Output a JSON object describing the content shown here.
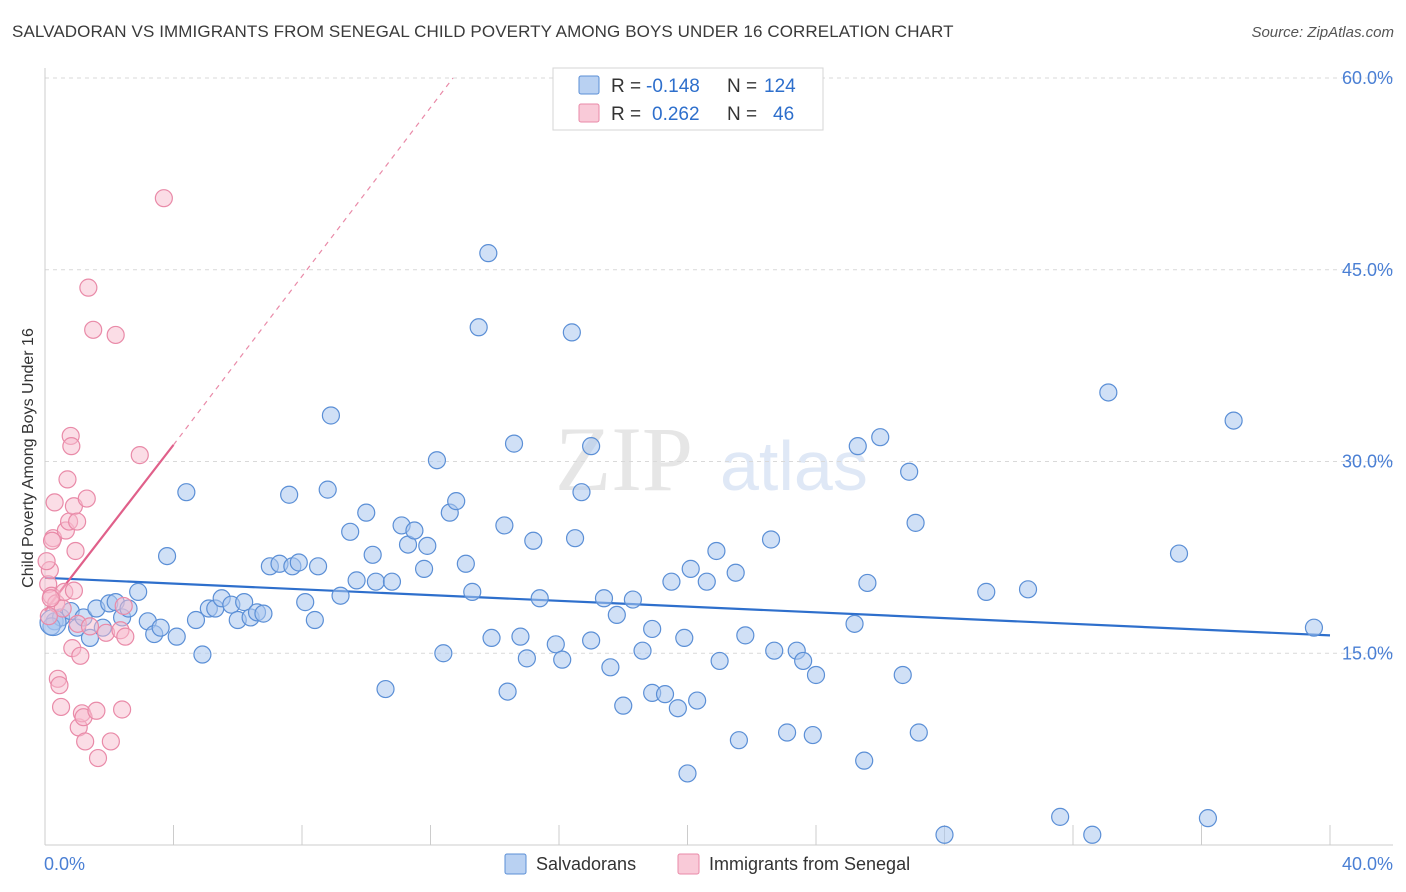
{
  "title": "SALVADORAN VS IMMIGRANTS FROM SENEGAL CHILD POVERTY AMONG BOYS UNDER 16 CORRELATION CHART",
  "source": "Source: ZipAtlas.com",
  "watermark": {
    "zip": "ZIP",
    "atlas": "atlas"
  },
  "colors": {
    "blue": "#5b8fd6",
    "blue_fill": "#a9c6ef",
    "blue_line": "#2e6fcc",
    "pink": "#e98aa8",
    "pink_fill": "#f7bccd",
    "pink_line": "#e0608a",
    "axis_label": "#4a7fd4",
    "grid": "#d9d9d9"
  },
  "legend_stats": [
    {
      "r_label": "R =",
      "r_value": "-0.148",
      "n_label": "N =",
      "n_value": "124",
      "color": "blue"
    },
    {
      "r_label": "R =",
      "r_value": "0.262",
      "n_label": "N =",
      "n_value": "46",
      "color": "pink"
    }
  ],
  "chart_data": {
    "type": "scatter",
    "xlabel": "",
    "ylabel": "Child Poverty Among Boys Under 16",
    "xlim": [
      0,
      40
    ],
    "ylim": [
      0,
      60
    ],
    "x_tick_labels": [
      "0.0%",
      "40.0%"
    ],
    "y_ticks": [
      15,
      30,
      45,
      60
    ],
    "y_tick_labels": [
      "15.0%",
      "30.0%",
      "45.0%",
      "60.0%"
    ],
    "legend": [
      "Salvadorans",
      "Immigrants from Senegal"
    ],
    "series": [
      {
        "name": "Salvadorans",
        "color": "blue",
        "trend": {
          "x": [
            0,
            40
          ],
          "y": [
            20.9,
            16.4
          ]
        },
        "points": [
          [
            0.3,
            17.5
          ],
          [
            0.5,
            17.8
          ],
          [
            0.8,
            18.3
          ],
          [
            1.0,
            17.0
          ],
          [
            1.2,
            17.8
          ],
          [
            1.4,
            16.2
          ],
          [
            1.6,
            18.5
          ],
          [
            1.8,
            17.0
          ],
          [
            2.0,
            18.9
          ],
          [
            2.2,
            19.0
          ],
          [
            2.4,
            17.8
          ],
          [
            2.6,
            18.5
          ],
          [
            2.9,
            19.8
          ],
          [
            3.2,
            17.5
          ],
          [
            3.4,
            16.5
          ],
          [
            3.6,
            17.0
          ],
          [
            3.8,
            22.6
          ],
          [
            4.1,
            16.3
          ],
          [
            4.4,
            27.6
          ],
          [
            4.7,
            17.6
          ],
          [
            4.9,
            14.9
          ],
          [
            5.1,
            18.5
          ],
          [
            5.3,
            18.5
          ],
          [
            5.5,
            19.3
          ],
          [
            5.8,
            18.8
          ],
          [
            6.0,
            17.6
          ],
          [
            6.2,
            19.0
          ],
          [
            6.4,
            17.8
          ],
          [
            6.6,
            18.2
          ],
          [
            6.8,
            18.1
          ],
          [
            7.0,
            21.8
          ],
          [
            7.3,
            22.0
          ],
          [
            7.6,
            27.4
          ],
          [
            7.7,
            21.8
          ],
          [
            7.9,
            22.1
          ],
          [
            8.1,
            19.0
          ],
          [
            8.4,
            17.6
          ],
          [
            8.5,
            21.8
          ],
          [
            8.8,
            27.8
          ],
          [
            8.9,
            33.6
          ],
          [
            9.2,
            19.5
          ],
          [
            9.5,
            24.5
          ],
          [
            9.7,
            20.7
          ],
          [
            10.0,
            26.0
          ],
          [
            10.2,
            22.7
          ],
          [
            10.3,
            20.6
          ],
          [
            10.8,
            20.6
          ],
          [
            10.6,
            12.2
          ],
          [
            11.1,
            25.0
          ],
          [
            11.3,
            23.5
          ],
          [
            11.5,
            24.6
          ],
          [
            11.8,
            21.6
          ],
          [
            11.9,
            23.4
          ],
          [
            12.2,
            30.1
          ],
          [
            12.4,
            15.0
          ],
          [
            12.6,
            26.0
          ],
          [
            12.8,
            26.9
          ],
          [
            13.1,
            22.0
          ],
          [
            13.3,
            19.8
          ],
          [
            13.5,
            40.5
          ],
          [
            13.8,
            46.3
          ],
          [
            13.9,
            16.2
          ],
          [
            14.3,
            25.0
          ],
          [
            14.4,
            12.0
          ],
          [
            14.6,
            31.4
          ],
          [
            14.8,
            16.3
          ],
          [
            15.0,
            14.6
          ],
          [
            15.2,
            23.8
          ],
          [
            15.4,
            19.3
          ],
          [
            15.9,
            15.7
          ],
          [
            16.1,
            14.5
          ],
          [
            16.4,
            40.1
          ],
          [
            16.5,
            24.0
          ],
          [
            16.7,
            27.6
          ],
          [
            17.0,
            31.2
          ],
          [
            17.0,
            16.0
          ],
          [
            17.4,
            19.3
          ],
          [
            17.6,
            13.9
          ],
          [
            17.8,
            18.0
          ],
          [
            18.0,
            10.9
          ],
          [
            18.3,
            19.2
          ],
          [
            18.6,
            15.2
          ],
          [
            18.9,
            16.9
          ],
          [
            18.9,
            11.9
          ],
          [
            19.3,
            11.8
          ],
          [
            19.5,
            20.6
          ],
          [
            19.7,
            10.7
          ],
          [
            19.9,
            16.2
          ],
          [
            20.0,
            5.6
          ],
          [
            20.1,
            21.6
          ],
          [
            20.3,
            11.3
          ],
          [
            20.6,
            20.6
          ],
          [
            20.9,
            23.0
          ],
          [
            21.0,
            14.4
          ],
          [
            21.5,
            21.3
          ],
          [
            21.6,
            8.2
          ],
          [
            21.8,
            16.4
          ],
          [
            22.6,
            23.9
          ],
          [
            22.7,
            15.2
          ],
          [
            23.1,
            8.8
          ],
          [
            23.4,
            15.2
          ],
          [
            23.6,
            14.4
          ],
          [
            23.9,
            8.6
          ],
          [
            24.0,
            13.3
          ],
          [
            25.2,
            17.3
          ],
          [
            25.5,
            6.6
          ],
          [
            25.6,
            20.5
          ],
          [
            25.3,
            31.2
          ],
          [
            26.0,
            31.9
          ],
          [
            26.7,
            13.3
          ],
          [
            26.9,
            29.2
          ],
          [
            27.1,
            25.2
          ],
          [
            27.2,
            8.8
          ],
          [
            28.0,
            0.8
          ],
          [
            29.3,
            19.8
          ],
          [
            30.6,
            20.0
          ],
          [
            31.6,
            2.2
          ],
          [
            32.6,
            0.8
          ],
          [
            33.1,
            35.4
          ],
          [
            35.3,
            22.8
          ],
          [
            36.2,
            2.1
          ],
          [
            37.0,
            33.2
          ],
          [
            39.5,
            17.0
          ],
          [
            0.2,
            17.1
          ]
        ]
      },
      {
        "name": "Immigrants from Senegal",
        "color": "pink",
        "trend": {
          "x": [
            0,
            4.0
          ],
          "y": [
            18.3,
            31.3
          ]
        },
        "trend_extension": {
          "x": [
            4.0,
            12.7
          ],
          "y": [
            31.3,
            60.0
          ]
        },
        "points": [
          [
            0.1,
            20.4
          ],
          [
            0.15,
            21.5
          ],
          [
            0.2,
            19.5
          ],
          [
            0.25,
            24.0
          ],
          [
            0.3,
            26.8
          ],
          [
            0.35,
            18.9
          ],
          [
            0.4,
            13.0
          ],
          [
            0.45,
            12.5
          ],
          [
            0.5,
            10.8
          ],
          [
            0.55,
            18.5
          ],
          [
            0.6,
            19.8
          ],
          [
            0.65,
            24.6
          ],
          [
            0.7,
            28.6
          ],
          [
            0.75,
            25.3
          ],
          [
            0.8,
            32.0
          ],
          [
            0.82,
            31.2
          ],
          [
            0.85,
            15.4
          ],
          [
            0.9,
            26.5
          ],
          [
            0.95,
            23.0
          ],
          [
            1.0,
            25.3
          ],
          [
            1.02,
            17.3
          ],
          [
            1.05,
            9.2
          ],
          [
            1.1,
            14.8
          ],
          [
            1.15,
            10.3
          ],
          [
            1.2,
            10.0
          ],
          [
            1.25,
            8.1
          ],
          [
            1.3,
            27.1
          ],
          [
            1.35,
            43.6
          ],
          [
            1.4,
            17.1
          ],
          [
            1.5,
            40.3
          ],
          [
            1.6,
            10.5
          ],
          [
            1.65,
            6.8
          ],
          [
            1.9,
            16.6
          ],
          [
            2.05,
            8.1
          ],
          [
            2.2,
            39.9
          ],
          [
            2.45,
            18.7
          ],
          [
            2.35,
            16.8
          ],
          [
            2.5,
            16.3
          ],
          [
            2.4,
            10.6
          ],
          [
            2.95,
            30.5
          ],
          [
            3.7,
            50.6
          ],
          [
            0.05,
            22.2
          ],
          [
            0.12,
            17.9
          ],
          [
            0.18,
            19.3
          ],
          [
            0.22,
            23.8
          ],
          [
            0.9,
            19.9
          ]
        ]
      }
    ]
  }
}
